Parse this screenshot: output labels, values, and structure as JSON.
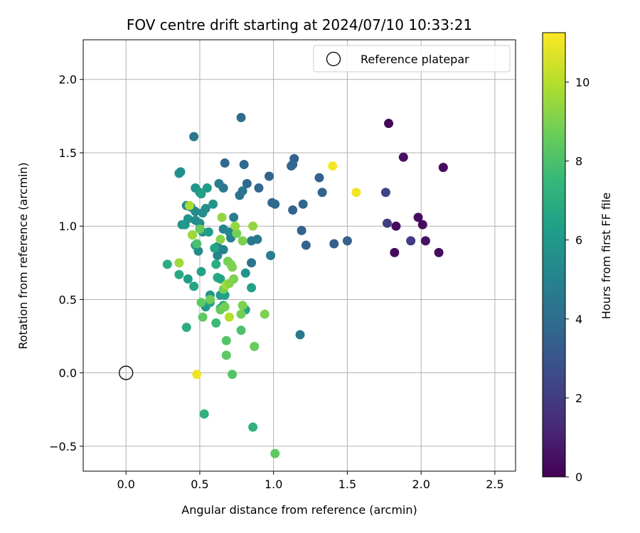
{
  "chart_data": {
    "type": "scatter",
    "title": "FOV centre drift starting at 2024/07/10 10:33:21",
    "xlabel": "Angular distance from reference (arcmin)",
    "ylabel": "Rotation from reference (arcmin)",
    "xlim": [
      -0.29,
      2.64
    ],
    "ylim": [
      -0.67,
      2.27
    ],
    "xticks": [
      0.0,
      0.5,
      1.0,
      1.5,
      2.0,
      2.5
    ],
    "xtick_labels": [
      "0.0",
      "0.5",
      "1.0",
      "1.5",
      "2.0",
      "2.5"
    ],
    "yticks": [
      -0.5,
      0.0,
      0.5,
      1.0,
      1.5,
      2.0
    ],
    "ytick_labels": [
      "−0.5",
      "0.0",
      "0.5",
      "1.0",
      "1.5",
      "2.0"
    ],
    "grid": true,
    "legend": {
      "placement": "top-right",
      "entries": [
        "Reference platepar"
      ]
    },
    "reference_point": {
      "x": 0.0,
      "y": 0.0,
      "marker": "open-circle"
    },
    "colorbar": {
      "label": "Hours from first FF file",
      "range": [
        0,
        11.25
      ],
      "ticks": [
        0,
        2,
        4,
        6,
        8,
        10
      ],
      "tick_labels": [
        "0",
        "2",
        "4",
        "6",
        "8",
        "10"
      ],
      "colormap": [
        "#440154",
        "#482878",
        "#3e4989",
        "#31688e",
        "#26828e",
        "#1f9e89",
        "#35b779",
        "#6ece58",
        "#b5de2b",
        "#fde725"
      ]
    },
    "points": [
      {
        "x": 1.78,
        "y": 1.7,
        "c": 0.2
      },
      {
        "x": 2.15,
        "y": 1.4,
        "c": 0.3
      },
      {
        "x": 1.88,
        "y": 1.47,
        "c": 0.5
      },
      {
        "x": 1.98,
        "y": 1.06,
        "c": 0.4
      },
      {
        "x": 2.01,
        "y": 1.01,
        "c": 0.4
      },
      {
        "x": 1.83,
        "y": 1.0,
        "c": 0.3
      },
      {
        "x": 1.82,
        "y": 0.82,
        "c": 0.3
      },
      {
        "x": 2.03,
        "y": 0.9,
        "c": 0.5
      },
      {
        "x": 2.12,
        "y": 0.82,
        "c": 0.4
      },
      {
        "x": 1.93,
        "y": 0.9,
        "c": 2.0
      },
      {
        "x": 1.77,
        "y": 1.02,
        "c": 2.0
      },
      {
        "x": 1.76,
        "y": 1.23,
        "c": 2.3
      },
      {
        "x": 0.78,
        "y": 1.74,
        "c": 4.0
      },
      {
        "x": 0.46,
        "y": 1.61,
        "c": 4.5
      },
      {
        "x": 1.14,
        "y": 1.46,
        "c": 3.5
      },
      {
        "x": 1.13,
        "y": 1.42,
        "c": 3.6
      },
      {
        "x": 1.12,
        "y": 1.41,
        "c": 3.7
      },
      {
        "x": 0.67,
        "y": 1.43,
        "c": 3.8
      },
      {
        "x": 0.8,
        "y": 1.42,
        "c": 3.9
      },
      {
        "x": 1.31,
        "y": 1.33,
        "c": 3.5
      },
      {
        "x": 0.97,
        "y": 1.34,
        "c": 3.6
      },
      {
        "x": 0.82,
        "y": 1.29,
        "c": 3.8
      },
      {
        "x": 0.9,
        "y": 1.26,
        "c": 3.7
      },
      {
        "x": 1.33,
        "y": 1.23,
        "c": 3.6
      },
      {
        "x": 0.79,
        "y": 1.24,
        "c": 4.5
      },
      {
        "x": 0.77,
        "y": 1.21,
        "c": 4.4
      },
      {
        "x": 0.63,
        "y": 1.29,
        "c": 4.8
      },
      {
        "x": 0.66,
        "y": 1.26,
        "c": 4.6
      },
      {
        "x": 0.99,
        "y": 1.16,
        "c": 3.9
      },
      {
        "x": 1.01,
        "y": 1.15,
        "c": 4.0
      },
      {
        "x": 1.2,
        "y": 1.15,
        "c": 3.8
      },
      {
        "x": 1.13,
        "y": 1.11,
        "c": 3.6
      },
      {
        "x": 1.19,
        "y": 0.97,
        "c": 3.5
      },
      {
        "x": 1.22,
        "y": 0.87,
        "c": 3.6
      },
      {
        "x": 1.41,
        "y": 0.88,
        "c": 3.4
      },
      {
        "x": 1.5,
        "y": 0.9,
        "c": 3.5
      },
      {
        "x": 1.18,
        "y": 0.26,
        "c": 4.6
      },
      {
        "x": 0.98,
        "y": 0.8,
        "c": 4.8
      },
      {
        "x": 0.89,
        "y": 0.91,
        "c": 4.6
      },
      {
        "x": 0.85,
        "y": 0.9,
        "c": 4.5
      },
      {
        "x": 0.85,
        "y": 0.75,
        "c": 4.3
      },
      {
        "x": 0.73,
        "y": 1.06,
        "c": 4.8
      },
      {
        "x": 0.71,
        "y": 0.92,
        "c": 4.9
      },
      {
        "x": 0.66,
        "y": 0.84,
        "c": 5.0
      },
      {
        "x": 0.62,
        "y": 0.86,
        "c": 5.2
      },
      {
        "x": 0.62,
        "y": 0.8,
        "c": 5.2
      },
      {
        "x": 0.37,
        "y": 1.37,
        "c": 5.5
      },
      {
        "x": 0.36,
        "y": 1.36,
        "c": 5.6
      },
      {
        "x": 0.47,
        "y": 1.26,
        "c": 5.8
      },
      {
        "x": 0.5,
        "y": 1.23,
        "c": 6.0
      },
      {
        "x": 0.55,
        "y": 1.26,
        "c": 6.2
      },
      {
        "x": 0.51,
        "y": 1.22,
        "c": 6.4
      },
      {
        "x": 0.59,
        "y": 1.15,
        "c": 5.8
      },
      {
        "x": 0.41,
        "y": 1.14,
        "c": 5.2
      },
      {
        "x": 0.44,
        "y": 1.13,
        "c": 5.0
      },
      {
        "x": 0.47,
        "y": 1.1,
        "c": 5.3
      },
      {
        "x": 0.52,
        "y": 1.09,
        "c": 5.6
      },
      {
        "x": 0.54,
        "y": 1.12,
        "c": 5.5
      },
      {
        "x": 0.42,
        "y": 1.05,
        "c": 5.8
      },
      {
        "x": 0.47,
        "y": 1.04,
        "c": 5.4
      },
      {
        "x": 0.5,
        "y": 1.02,
        "c": 5.6
      },
      {
        "x": 0.38,
        "y": 1.01,
        "c": 5.8
      },
      {
        "x": 0.4,
        "y": 1.01,
        "c": 6.0
      },
      {
        "x": 0.52,
        "y": 0.96,
        "c": 5.8
      },
      {
        "x": 0.56,
        "y": 0.96,
        "c": 6.2
      },
      {
        "x": 0.45,
        "y": 0.94,
        "c": 6.0
      },
      {
        "x": 0.47,
        "y": 0.87,
        "c": 6.3
      },
      {
        "x": 0.49,
        "y": 0.83,
        "c": 5.4
      },
      {
        "x": 0.66,
        "y": 0.98,
        "c": 5.0
      },
      {
        "x": 0.7,
        "y": 0.96,
        "c": 5.2
      },
      {
        "x": 0.81,
        "y": 0.68,
        "c": 5.8
      },
      {
        "x": 0.85,
        "y": 0.58,
        "c": 6.4
      },
      {
        "x": 0.81,
        "y": 0.43,
        "c": 6.6
      },
      {
        "x": 0.54,
        "y": 0.45,
        "c": 6.0
      },
      {
        "x": 0.57,
        "y": 0.53,
        "c": 5.9
      },
      {
        "x": 0.57,
        "y": 0.48,
        "c": 6.4
      },
      {
        "x": 0.64,
        "y": 0.53,
        "c": 6.2
      },
      {
        "x": 0.67,
        "y": 0.53,
        "c": 6.4
      },
      {
        "x": 0.64,
        "y": 0.44,
        "c": 6.4
      },
      {
        "x": 0.66,
        "y": 0.46,
        "c": 6.6
      },
      {
        "x": 0.46,
        "y": 0.59,
        "c": 6.6
      },
      {
        "x": 0.42,
        "y": 0.64,
        "c": 6.2
      },
      {
        "x": 0.36,
        "y": 0.67,
        "c": 6.8
      },
      {
        "x": 0.28,
        "y": 0.74,
        "c": 7.0
      },
      {
        "x": 0.41,
        "y": 0.31,
        "c": 7.0
      },
      {
        "x": 0.62,
        "y": 0.65,
        "c": 6.8
      },
      {
        "x": 0.64,
        "y": 0.64,
        "c": 6.6
      },
      {
        "x": 0.61,
        "y": 0.74,
        "c": 7.0
      },
      {
        "x": 0.6,
        "y": 0.85,
        "c": 6.6
      },
      {
        "x": 0.51,
        "y": 0.69,
        "c": 6.4
      },
      {
        "x": 0.53,
        "y": -0.28,
        "c": 7.2
      },
      {
        "x": 0.86,
        "y": -0.37,
        "c": 7.2
      },
      {
        "x": 0.61,
        "y": 0.34,
        "c": 7.6
      },
      {
        "x": 0.68,
        "y": 0.22,
        "c": 8.2
      },
      {
        "x": 0.68,
        "y": 0.12,
        "c": 8.4
      },
      {
        "x": 0.72,
        "y": -0.01,
        "c": 8.2
      },
      {
        "x": 1.01,
        "y": -0.55,
        "c": 8.4
      },
      {
        "x": 0.87,
        "y": 0.18,
        "c": 8.6
      },
      {
        "x": 0.78,
        "y": 0.29,
        "c": 8.0
      },
      {
        "x": 0.52,
        "y": 0.38,
        "c": 8.4
      },
      {
        "x": 0.51,
        "y": 0.48,
        "c": 8.4
      },
      {
        "x": 0.57,
        "y": 0.5,
        "c": 8.7
      },
      {
        "x": 0.64,
        "y": 0.43,
        "c": 8.6
      },
      {
        "x": 0.67,
        "y": 0.45,
        "c": 8.8
      },
      {
        "x": 0.78,
        "y": 0.4,
        "c": 8.8
      },
      {
        "x": 0.79,
        "y": 0.46,
        "c": 9.0
      },
      {
        "x": 0.94,
        "y": 0.4,
        "c": 9.0
      },
      {
        "x": 0.66,
        "y": 0.57,
        "c": 8.8
      },
      {
        "x": 0.68,
        "y": 0.6,
        "c": 9.8
      },
      {
        "x": 0.7,
        "y": 0.61,
        "c": 9.2
      },
      {
        "x": 0.73,
        "y": 0.64,
        "c": 9.0
      },
      {
        "x": 0.7,
        "y": 0.38,
        "c": 10.0
      },
      {
        "x": 0.72,
        "y": 0.72,
        "c": 9.0
      },
      {
        "x": 0.69,
        "y": 0.76,
        "c": 8.8
      },
      {
        "x": 0.71,
        "y": 0.74,
        "c": 9.0
      },
      {
        "x": 0.64,
        "y": 0.91,
        "c": 9.2
      },
      {
        "x": 0.79,
        "y": 0.9,
        "c": 9.0
      },
      {
        "x": 0.75,
        "y": 0.95,
        "c": 8.8
      },
      {
        "x": 0.74,
        "y": 1.0,
        "c": 9.4
      },
      {
        "x": 0.86,
        "y": 1.0,
        "c": 9.4
      },
      {
        "x": 0.65,
        "y": 1.06,
        "c": 9.4
      },
      {
        "x": 0.45,
        "y": 0.94,
        "c": 9.6
      },
      {
        "x": 0.36,
        "y": 0.75,
        "c": 9.6
      },
      {
        "x": 0.43,
        "y": 1.14,
        "c": 9.8
      },
      {
        "x": 0.5,
        "y": 0.98,
        "c": 8.6
      },
      {
        "x": 0.48,
        "y": 0.88,
        "c": 8.0
      },
      {
        "x": 0.48,
        "y": -0.01,
        "c": 11.0
      },
      {
        "x": 1.4,
        "y": 1.41,
        "c": 11.1
      },
      {
        "x": 1.56,
        "y": 1.23,
        "c": 11.0
      }
    ]
  }
}
